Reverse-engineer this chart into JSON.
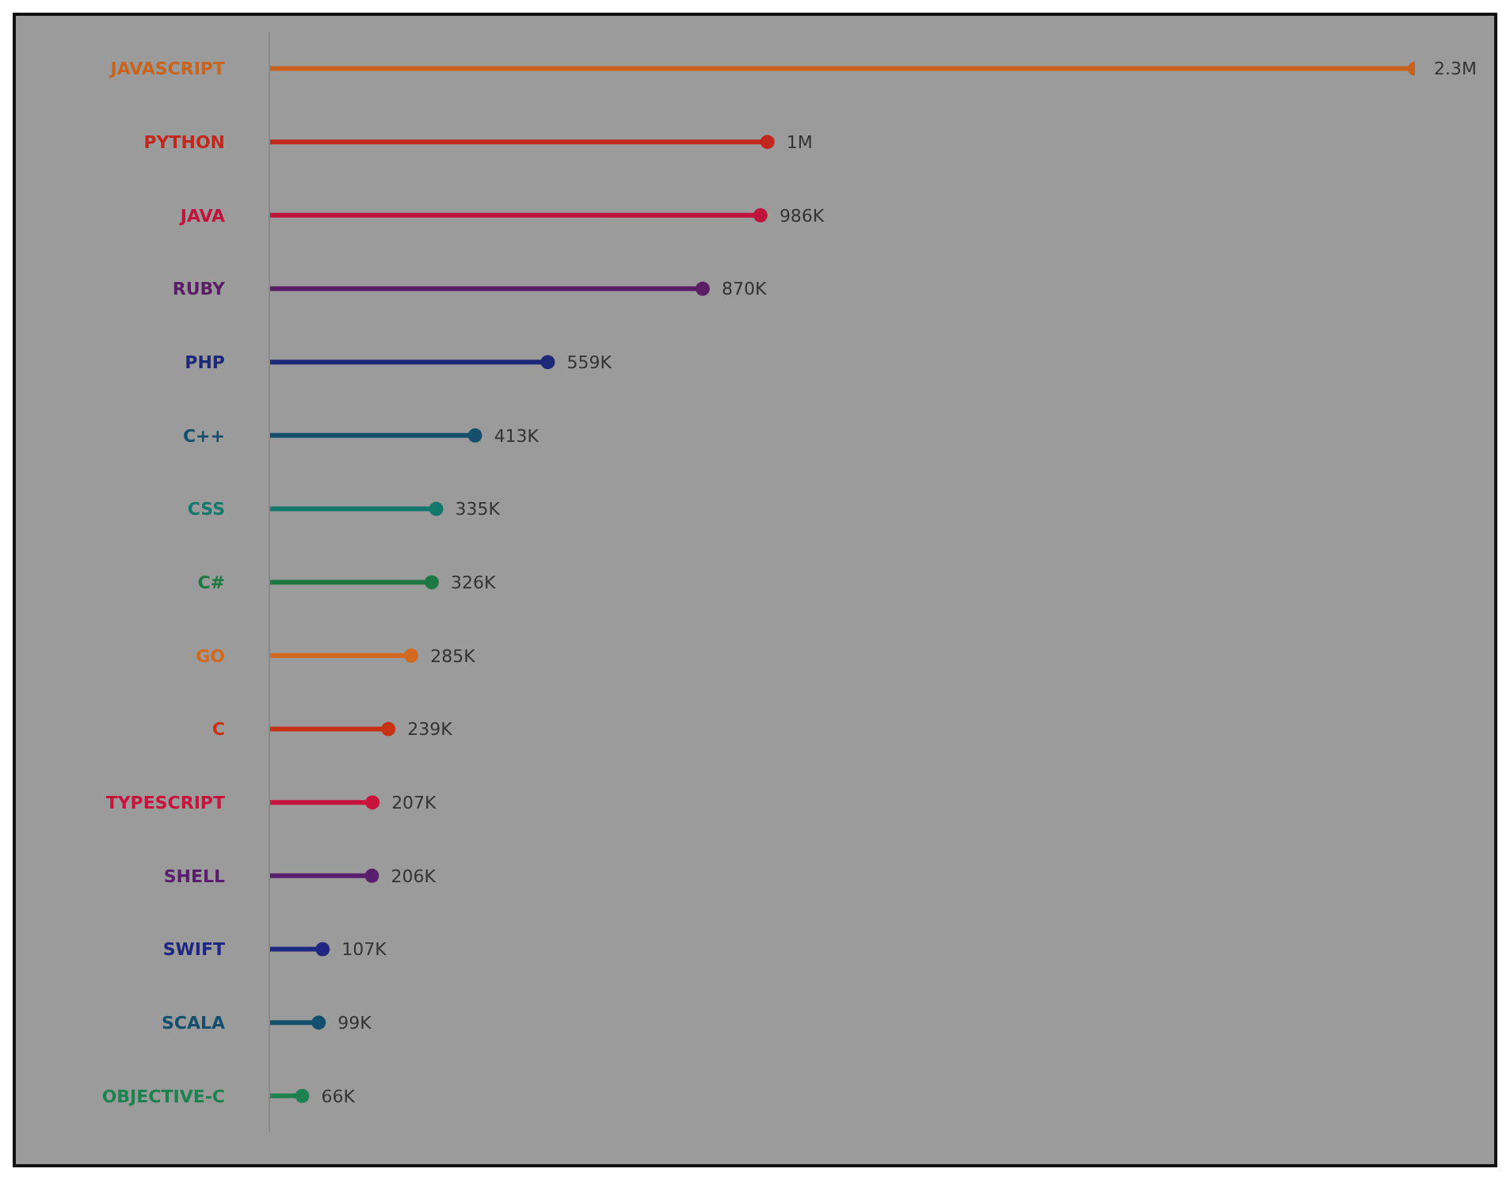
{
  "chart_data": {
    "type": "lollipop",
    "orientation": "horizontal",
    "categories": [
      "JAVASCRIPT",
      "PYTHON",
      "JAVA",
      "RUBY",
      "PHP",
      "C++",
      "CSS",
      "C#",
      "GO",
      "C",
      "TYPESCRIPT",
      "SHELL",
      "SWIFT",
      "SCALA",
      "OBJECTIVE-C"
    ],
    "values": [
      2300000,
      1000000,
      986000,
      870000,
      559000,
      413000,
      335000,
      326000,
      285000,
      239000,
      207000,
      206000,
      107000,
      99000,
      66000
    ],
    "value_labels": [
      "2.3M",
      "1M",
      "986K",
      "870K",
      "559K",
      "413K",
      "335K",
      "326K",
      "285K",
      "239K",
      "207K",
      "206K",
      "107K",
      "99K",
      "66K"
    ],
    "colors": [
      "#c8641e",
      "#c0281e",
      "#c0143c",
      "#5a1e64",
      "#1e2878",
      "#14506e",
      "#14786e",
      "#1e7841",
      "#d2691e",
      "#c83214",
      "#c8143c",
      "#5a1e6e",
      "#1e2882",
      "#14506e",
      "#1e8250"
    ]
  }
}
